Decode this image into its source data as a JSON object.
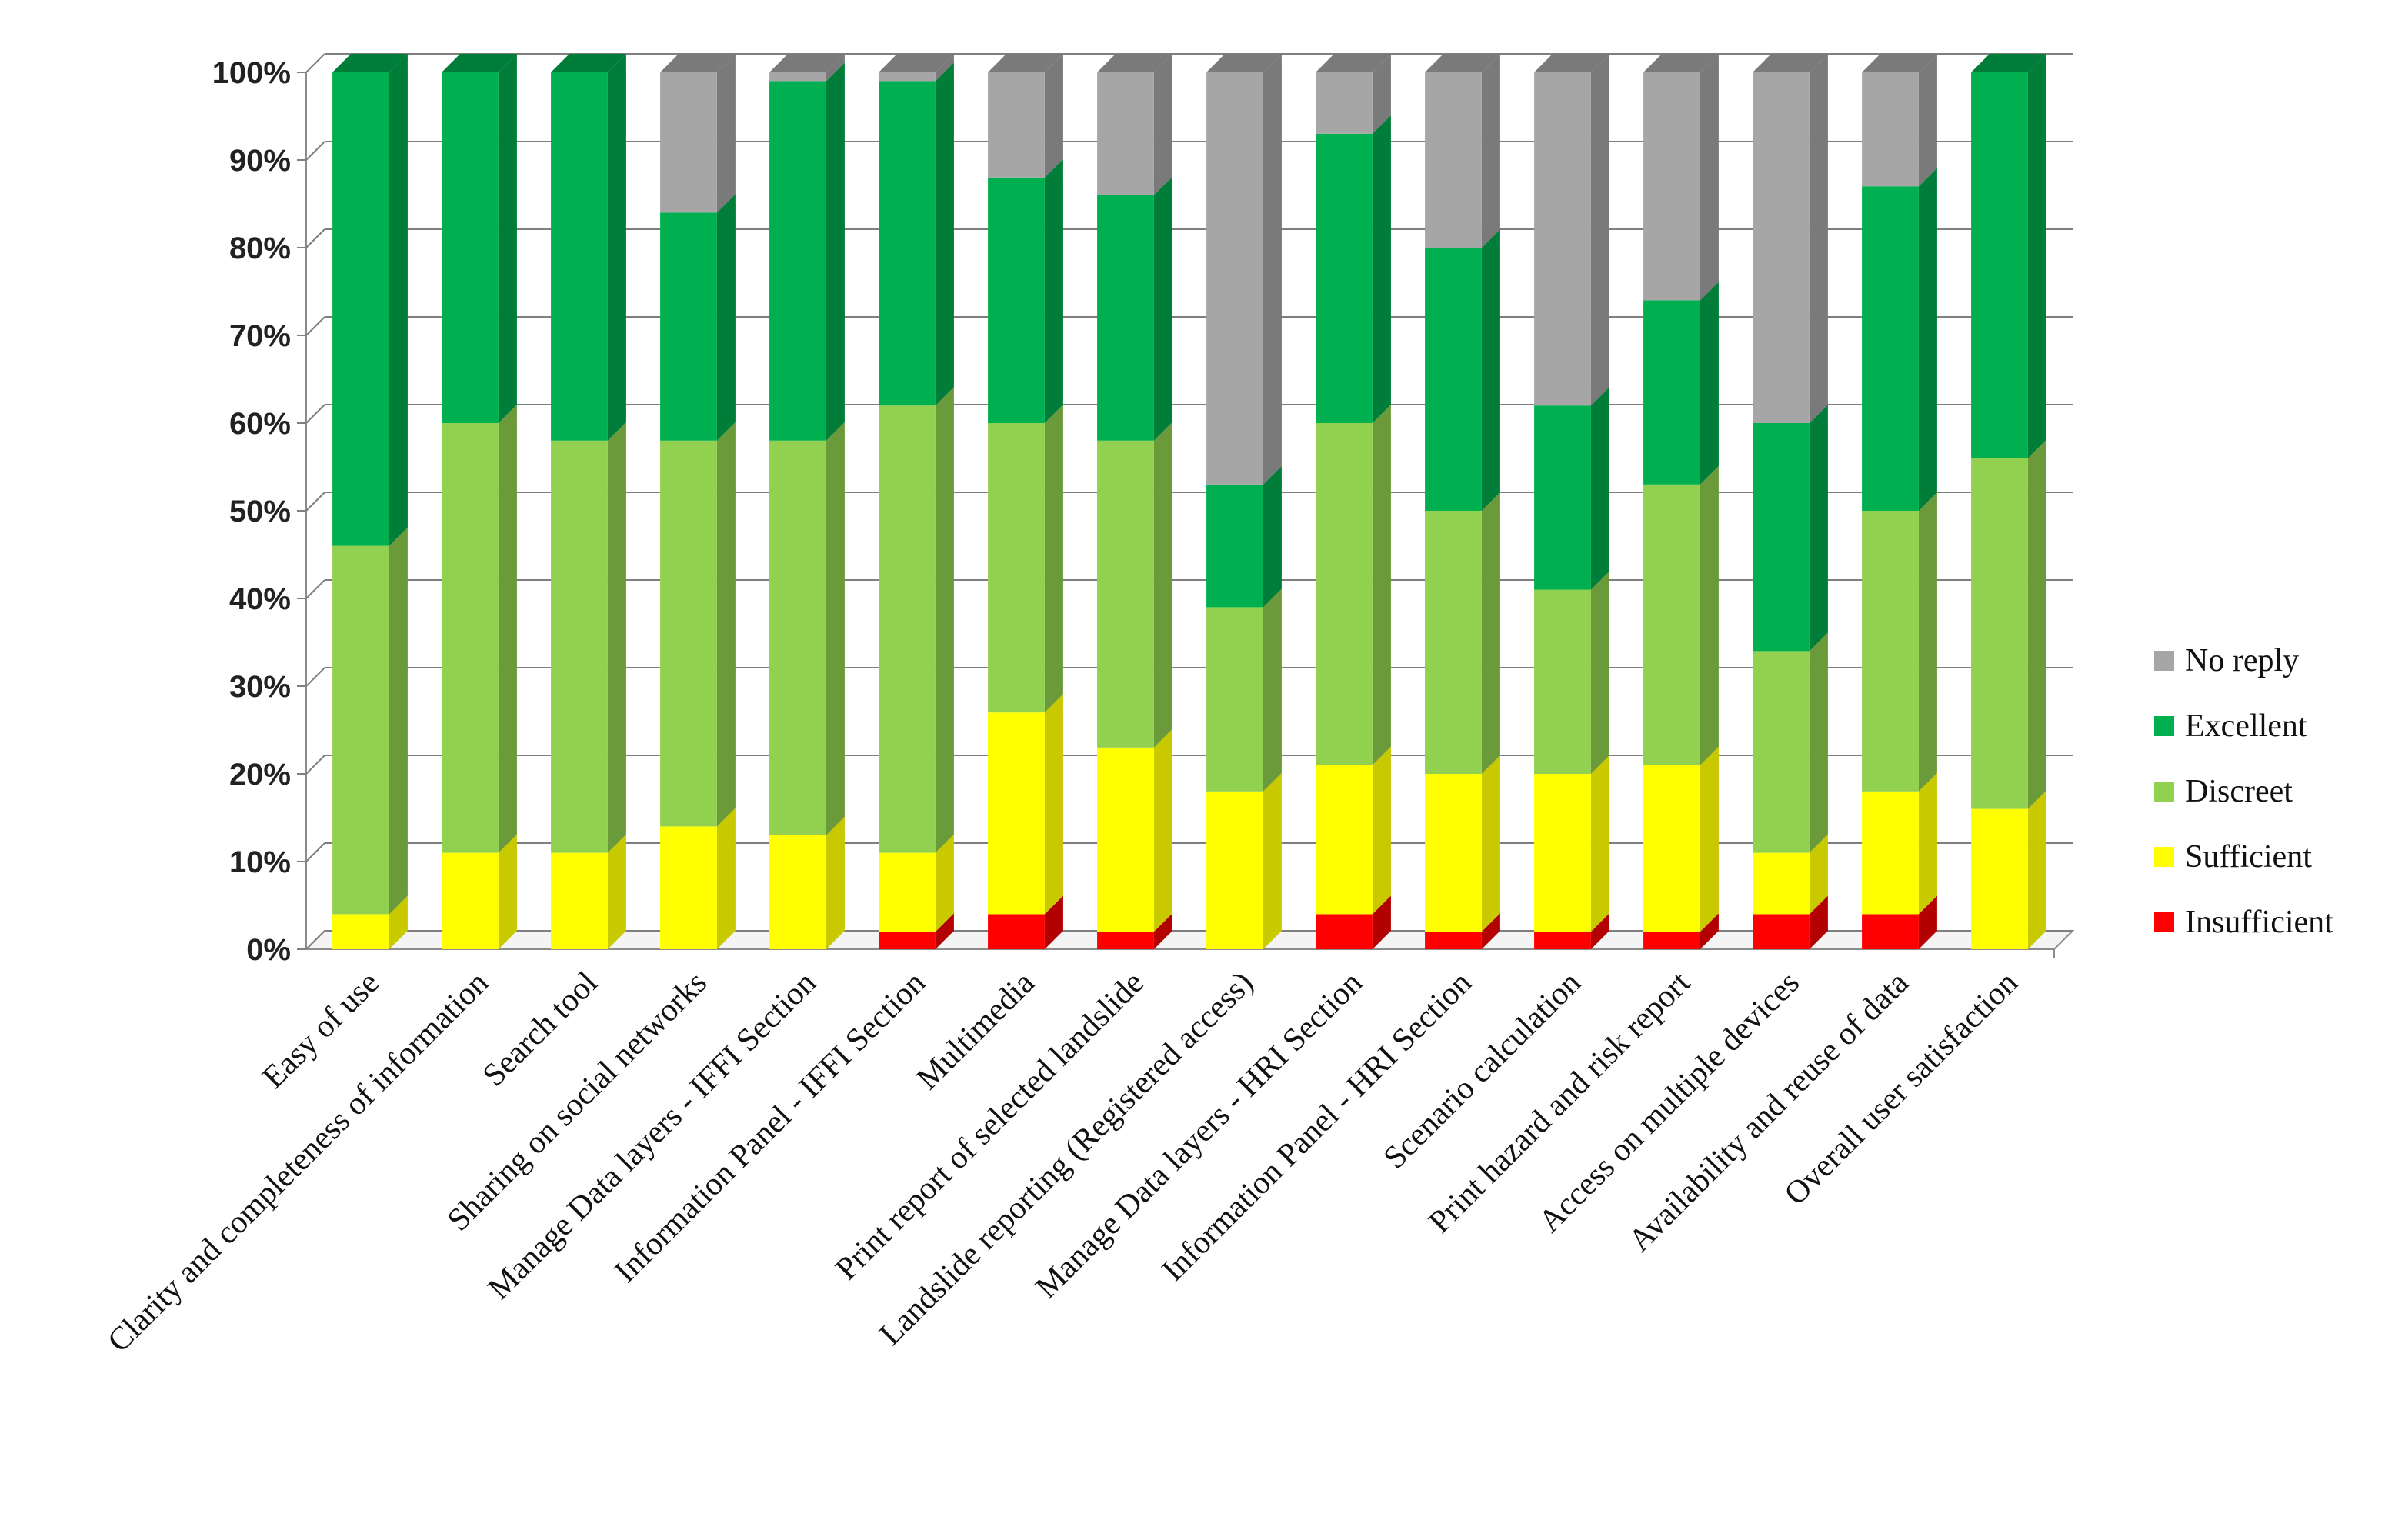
{
  "chart_data": {
    "type": "bar",
    "stacked": true,
    "percent": true,
    "three_d": true,
    "title": "",
    "xlabel": "",
    "ylabel": "",
    "ylim": [
      0,
      100
    ],
    "yticks": [
      "0%",
      "10%",
      "20%",
      "30%",
      "40%",
      "50%",
      "60%",
      "70%",
      "80%",
      "90%",
      "100%"
    ],
    "grid": true,
    "legend_position": "right",
    "categories": [
      "Easy of use",
      "Clarity and completeness of information",
      "Search tool",
      "Sharing on social networks",
      "Manage Data layers - IFFI Section",
      "Information Panel - IFFI Section",
      "Multimedia",
      "Print report of selected landslide",
      "Landslide reporting (Registered access)",
      "Manage Data layers - HRI Section",
      "Information Panel - HRI Section",
      "Scenario calculation",
      "Print hazard and risk report",
      "Access on multiple devices",
      "Availability and reuse of data",
      "Overall user satisfaction"
    ],
    "series": [
      {
        "name": "Insufficient",
        "color": "#ff0000",
        "side_color": "#b30000",
        "values": [
          0,
          0,
          0,
          0,
          0,
          2,
          4,
          2,
          0,
          4,
          2,
          2,
          2,
          4,
          4,
          0
        ]
      },
      {
        "name": "Sufficient",
        "color": "#ffff00",
        "side_color": "#c9c900",
        "values": [
          4,
          11,
          11,
          14,
          13,
          9,
          23,
          21,
          18,
          17,
          18,
          18,
          19,
          7,
          14,
          16
        ]
      },
      {
        "name": "Discreet",
        "color": "#92d050",
        "side_color": "#6b9a3a",
        "values": [
          42,
          49,
          47,
          44,
          45,
          51,
          33,
          35,
          21,
          39,
          30,
          21,
          32,
          23,
          32,
          40
        ]
      },
      {
        "name": "Excellent",
        "color": "#00b050",
        "side_color": "#007d38",
        "values": [
          54,
          40,
          42,
          26,
          41,
          37,
          28,
          28,
          14,
          33,
          30,
          21,
          21,
          26,
          37,
          44
        ]
      },
      {
        "name": "No reply",
        "color": "#a6a6a6",
        "side_color": "#7a7a7a",
        "values": [
          0,
          0,
          0,
          16,
          1,
          1,
          12,
          14,
          47,
          7,
          20,
          38,
          26,
          40,
          13,
          0
        ]
      }
    ],
    "legend_order": [
      "No reply",
      "Excellent",
      "Discreet",
      "Sufficient",
      "Insufficient"
    ]
  }
}
